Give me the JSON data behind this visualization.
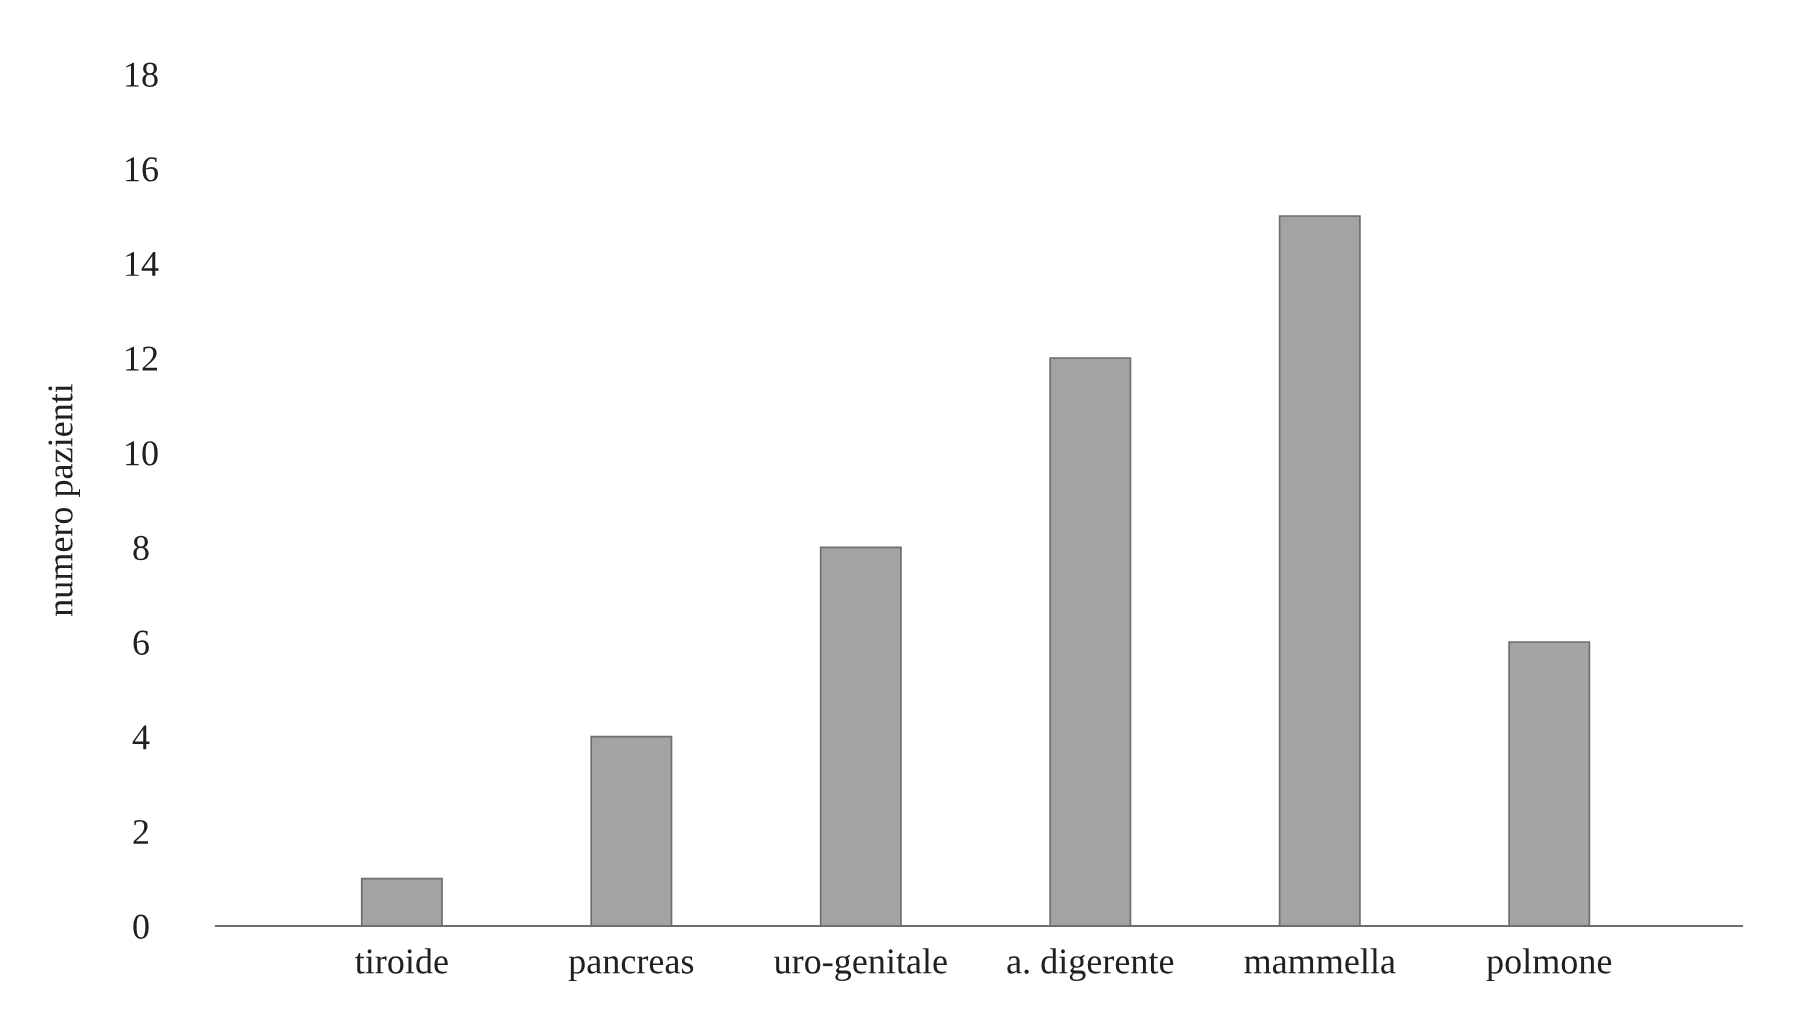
{
  "chart_data": {
    "type": "bar",
    "ylabel": "numero pazienti",
    "categories": [
      "tiroide",
      "pancreas",
      "uro-genitale",
      "a. digerente",
      "mammella",
      "polmone"
    ],
    "values": [
      1,
      4,
      8,
      12,
      15,
      6
    ],
    "color": "#a3a3a5",
    "ylim": [
      0,
      18
    ],
    "yticks": [
      0,
      2,
      4,
      6,
      8,
      10,
      12,
      14,
      16,
      18
    ],
    "grid": false,
    "legend": false
  }
}
